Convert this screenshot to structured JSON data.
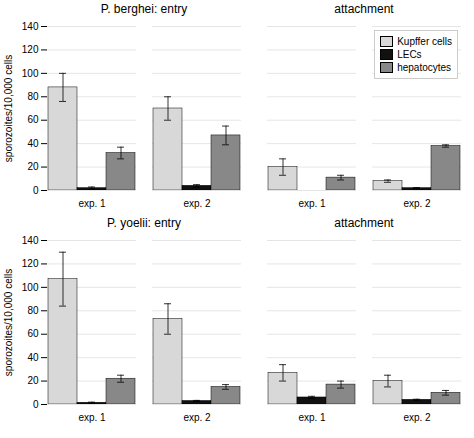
{
  "chart_data": [
    {
      "type": "bar",
      "title": "P. berghei: entry",
      "categories": [
        "exp. 1",
        "exp. 2"
      ],
      "series": [
        {
          "name": "Kupffer cells",
          "color": "#d8d8d8",
          "values": [
            88,
            70
          ],
          "errors": [
            12,
            10
          ]
        },
        {
          "name": "LECs",
          "color": "#111111",
          "values": [
            2,
            4
          ],
          "errors": [
            1,
            1
          ]
        },
        {
          "name": "hepatocytes",
          "color": "#888888",
          "values": [
            32,
            47
          ],
          "errors": [
            5,
            8
          ]
        }
      ],
      "ylabel": "sporozoites/10,000 cells",
      "ylim": [
        0,
        140
      ],
      "yticks": [
        0,
        20,
        40,
        60,
        80,
        100,
        120,
        140
      ],
      "grid": true
    },
    {
      "type": "bar",
      "title": "attachment",
      "categories": [
        "exp. 1",
        "exp. 2"
      ],
      "series": [
        {
          "name": "Kupffer cells",
          "color": "#d8d8d8",
          "values": [
            20,
            8
          ],
          "errors": [
            7,
            1
          ]
        },
        {
          "name": "LECs",
          "color": "#111111",
          "values": [
            0,
            2
          ],
          "errors": [
            0,
            0.5
          ]
        },
        {
          "name": "hepatocytes",
          "color": "#888888",
          "values": [
            11,
            38
          ],
          "errors": [
            2,
            1
          ]
        }
      ],
      "ylim": [
        0,
        140
      ],
      "yticks": [
        0,
        20,
        40,
        60,
        80,
        100,
        120,
        140
      ],
      "grid": true,
      "tick_labels": "x",
      "legend": "upper right"
    },
    {
      "type": "bar",
      "title": "P. yoelii: entry",
      "categories": [
        "exp. 1",
        "exp. 2"
      ],
      "series": [
        {
          "name": "Kupffer cells",
          "color": "#d8d8d8",
          "values": [
            107,
            73
          ],
          "errors": [
            23,
            13
          ]
        },
        {
          "name": "LECs",
          "color": "#111111",
          "values": [
            1.5,
            3
          ],
          "errors": [
            0.5,
            0.5
          ]
        },
        {
          "name": "hepatocytes",
          "color": "#888888",
          "values": [
            22,
            15
          ],
          "errors": [
            3,
            2
          ]
        }
      ],
      "ylabel": "sporozoites/10,000 cells",
      "ylim": [
        0,
        140
      ],
      "yticks": [
        0,
        20,
        40,
        60,
        80,
        100,
        120,
        140
      ],
      "grid": true
    },
    {
      "type": "bar",
      "title": "attachment",
      "categories": [
        "exp. 1",
        "exp. 2"
      ],
      "series": [
        {
          "name": "Kupffer cells",
          "color": "#d8d8d8",
          "values": [
            27,
            20
          ],
          "errors": [
            7,
            5
          ]
        },
        {
          "name": "LECs",
          "color": "#111111",
          "values": [
            6,
            4
          ],
          "errors": [
            1,
            0.5
          ]
        },
        {
          "name": "hepatocytes",
          "color": "#888888",
          "values": [
            17,
            10
          ],
          "errors": [
            3,
            2
          ]
        }
      ],
      "ylim": [
        0,
        140
      ],
      "yticks": [
        0,
        20,
        40,
        60,
        80,
        100,
        120,
        140
      ],
      "grid": true,
      "tick_labels": "x"
    }
  ]
}
